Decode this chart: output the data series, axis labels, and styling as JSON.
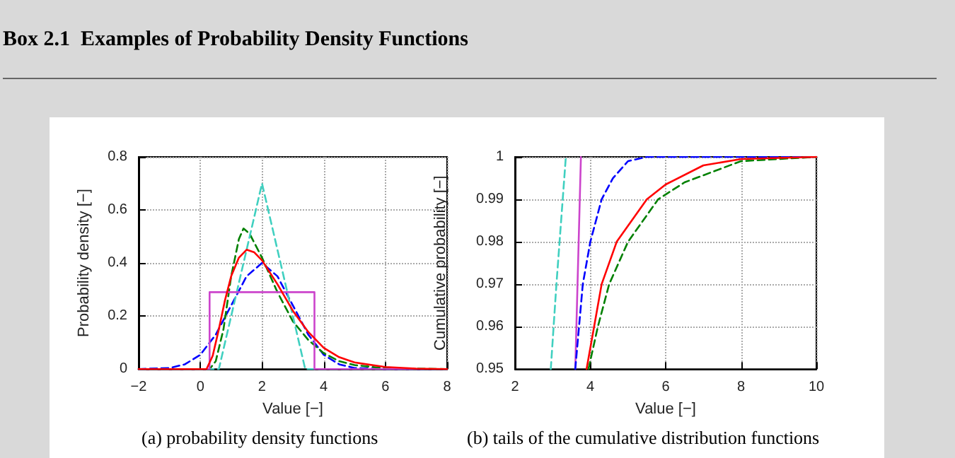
{
  "chart_data": [
    {
      "type": "line",
      "title": "Box 2.1  Examples of Probability Density Functions",
      "xlabel": "Value [−]",
      "ylabel": "Probability density [−]",
      "annotations": [
        "(a) probability density functions"
      ],
      "xlim": [
        -2,
        8
      ],
      "xticks": [
        {
          "value": -2,
          "label": "−2"
        },
        0,
        2,
        4,
        6,
        8
      ],
      "ylim": [
        0,
        0.8
      ],
      "yticks": [
        0,
        0.2,
        0.4,
        0.6,
        0.8
      ],
      "grid": true,
      "marker": "none",
      "series": [
        {
          "color": "#0000ff",
          "line_style": "dashed",
          "x": [
            -2,
            -1,
            -0.5,
            0,
            0.5,
            1,
            1.5,
            2,
            2.5,
            3,
            3.5,
            4,
            4.5,
            5,
            6,
            8
          ],
          "values": [
            0,
            0.004,
            0.018,
            0.054,
            0.13,
            0.24,
            0.35,
            0.4,
            0.35,
            0.24,
            0.13,
            0.054,
            0.018,
            0.004,
            0,
            0
          ]
        },
        {
          "color": "#008000",
          "line_style": "dashed",
          "x": [
            -2,
            0.3,
            0.5,
            0.75,
            1,
            1.25,
            1.4,
            1.6,
            2,
            2.5,
            3,
            3.5,
            4,
            4.5,
            5,
            6,
            8
          ],
          "values": [
            0,
            0,
            0.03,
            0.15,
            0.35,
            0.49,
            0.53,
            0.51,
            0.42,
            0.29,
            0.18,
            0.11,
            0.06,
            0.03,
            0.015,
            0.003,
            0
          ]
        },
        {
          "color": "#40d0c0",
          "line_style": "dashed",
          "x": [
            -2,
            0.6,
            2,
            3.4,
            8
          ],
          "values": [
            0,
            0,
            0.7,
            0,
            0
          ]
        },
        {
          "color": "#cc44cc",
          "line_style": "solid",
          "x": [
            -2,
            0.3,
            0.3,
            3.7,
            3.7,
            8
          ],
          "values": [
            0,
            0,
            0.29,
            0.29,
            0,
            0
          ]
        },
        {
          "color": "#ff0000",
          "line_style": "solid",
          "x": [
            -2,
            0.2,
            0.4,
            0.6,
            0.8,
            1,
            1.25,
            1.5,
            1.75,
            2,
            2.5,
            3,
            3.5,
            4,
            4.5,
            5,
            6,
            7,
            8
          ],
          "values": [
            0,
            0,
            0.05,
            0.15,
            0.26,
            0.35,
            0.42,
            0.45,
            0.44,
            0.41,
            0.32,
            0.22,
            0.14,
            0.08,
            0.045,
            0.025,
            0.008,
            0.002,
            0
          ]
        }
      ]
    },
    {
      "type": "line",
      "xlabel": "Value [−]",
      "ylabel": "Cumulative probability [−]",
      "annotations": [
        "(b) tails of the cumulative distribution functions"
      ],
      "xlim": [
        2,
        10
      ],
      "xticks": [
        2,
        4,
        6,
        8,
        10
      ],
      "ylim": [
        0.95,
        1
      ],
      "yticks": [
        0.95,
        0.96,
        0.97,
        0.98,
        0.99,
        1
      ],
      "grid": true,
      "marker": "none",
      "series": [
        {
          "color": "#40d0c0",
          "line_style": "dashed",
          "x": [
            2.95,
            3.1,
            3.35
          ],
          "values": [
            0.95,
            0.97,
            1
          ]
        },
        {
          "color": "#cc44cc",
          "line_style": "solid",
          "x": [
            3.6,
            3.75
          ],
          "values": [
            0.95,
            1
          ]
        },
        {
          "color": "#0000ff",
          "line_style": "dashed",
          "x": [
            3.6,
            3.8,
            4,
            4.3,
            4.6,
            5,
            5.5,
            10
          ],
          "values": [
            0.95,
            0.97,
            0.98,
            0.99,
            0.995,
            0.999,
            1,
            1
          ]
        },
        {
          "color": "#008000",
          "line_style": "dashed",
          "x": [
            3.95,
            4.2,
            4.5,
            5,
            5.8,
            6.5,
            8,
            10
          ],
          "values": [
            0.95,
            0.96,
            0.97,
            0.98,
            0.99,
            0.994,
            0.999,
            1
          ]
        },
        {
          "color": "#ff0000",
          "line_style": "solid",
          "x": [
            3.9,
            4.1,
            4.3,
            4.7,
            5.5,
            6,
            7,
            8,
            10
          ],
          "values": [
            0.95,
            0.96,
            0.97,
            0.98,
            0.99,
            0.9935,
            0.998,
            0.9995,
            1
          ]
        }
      ]
    }
  ]
}
